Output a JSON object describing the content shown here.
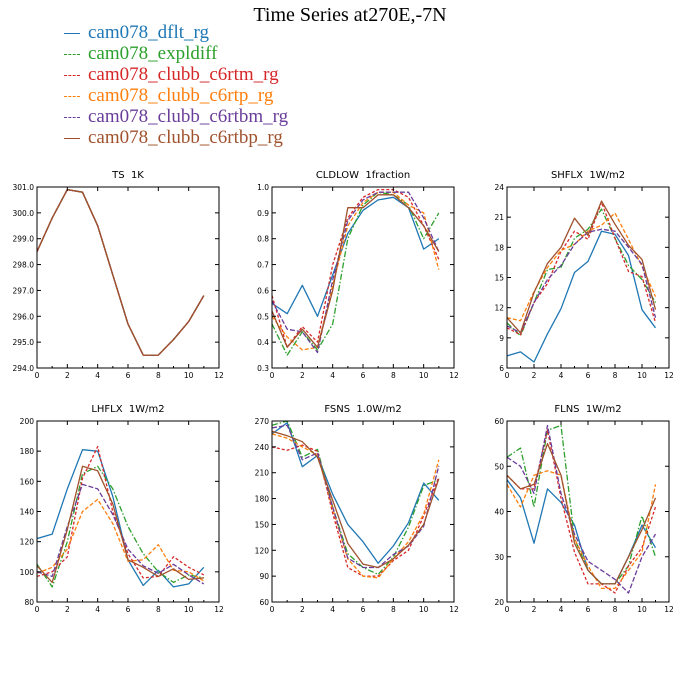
{
  "page_title": "Time Series at270E,-7N",
  "legend": [
    {
      "name": "cam078_dflt_rg",
      "color": "#1f77b4",
      "dash": false
    },
    {
      "name": "cam078_expldiff",
      "color": "#2ca02c",
      "dash": true
    },
    {
      "name": "cam078_clubb_c6rtm_rg",
      "color": "#d62728",
      "dash": true
    },
    {
      "name": "cam078_clubb_c6rtp_rg",
      "color": "#ff7f0e",
      "dash": true
    },
    {
      "name": "cam078_clubb_c6rtbm_rg",
      "color": "#6a3d9a",
      "dash": true
    },
    {
      "name": "cam078_clubb_c6rtbp_rg",
      "color": "#a0522d",
      "dash": false
    }
  ],
  "chart_data": [
    {
      "type": "line",
      "title": "TS 1K",
      "xlim": [
        0,
        12
      ],
      "ylim": [
        294.0,
        301.0
      ],
      "xticks": [
        "0",
        "2",
        "4",
        "6",
        "8",
        "10",
        "12"
      ],
      "yticks": [
        "294.0",
        "295.0",
        "296.0",
        "297.0",
        "298.0",
        "299.0",
        "300.0",
        "301.0"
      ],
      "x": [
        0,
        1,
        2,
        3,
        4,
        5,
        6,
        7,
        8,
        9,
        10,
        11
      ],
      "series": [
        {
          "name": "cam078_dflt_rg",
          "values": [
            298.5,
            299.8,
            300.9,
            300.8,
            299.5,
            297.6,
            295.7,
            294.5,
            294.5,
            295.1,
            295.8,
            296.8
          ]
        },
        {
          "name": "cam078_expldiff",
          "values": [
            298.5,
            299.8,
            300.9,
            300.8,
            299.5,
            297.6,
            295.7,
            294.5,
            294.5,
            295.1,
            295.8,
            296.8
          ]
        },
        {
          "name": "cam078_clubb_c6rtm_rg",
          "values": [
            298.5,
            299.8,
            300.9,
            300.8,
            299.5,
            297.6,
            295.7,
            294.5,
            294.5,
            295.1,
            295.8,
            296.8
          ]
        },
        {
          "name": "cam078_clubb_c6rtp_rg",
          "values": [
            298.5,
            299.8,
            300.9,
            300.8,
            299.5,
            297.6,
            295.7,
            294.5,
            294.5,
            295.1,
            295.8,
            296.8
          ]
        },
        {
          "name": "cam078_clubb_c6rtbm_rg",
          "values": [
            298.5,
            299.8,
            300.9,
            300.8,
            299.5,
            297.6,
            295.7,
            294.5,
            294.5,
            295.1,
            295.8,
            296.8
          ]
        },
        {
          "name": "cam078_clubb_c6rtbp_rg",
          "values": [
            298.5,
            299.8,
            300.9,
            300.8,
            299.5,
            297.6,
            295.7,
            294.5,
            294.5,
            295.1,
            295.8,
            296.8
          ]
        }
      ]
    },
    {
      "type": "line",
      "title": "CLDLOW 1fraction",
      "xlim": [
        0,
        12
      ],
      "ylim": [
        0.3,
        1.0
      ],
      "xticks": [
        "0",
        "2",
        "4",
        "6",
        "8",
        "10",
        "12"
      ],
      "yticks": [
        "0.3",
        "0.4",
        "0.5",
        "0.6",
        "0.7",
        "0.8",
        "0.9",
        "1.0"
      ],
      "x": [
        0,
        1,
        2,
        3,
        4,
        5,
        6,
        7,
        8,
        9,
        10,
        11
      ],
      "series": [
        {
          "name": "cam078_dflt_rg",
          "values": [
            0.55,
            0.51,
            0.62,
            0.5,
            0.66,
            0.82,
            0.91,
            0.95,
            0.96,
            0.92,
            0.76,
            0.8
          ]
        },
        {
          "name": "cam078_expldiff",
          "values": [
            0.47,
            0.35,
            0.44,
            0.37,
            0.47,
            0.8,
            0.93,
            0.98,
            0.97,
            0.93,
            0.8,
            0.9
          ]
        },
        {
          "name": "cam078_clubb_c6rtm_rg",
          "values": [
            0.58,
            0.38,
            0.46,
            0.4,
            0.7,
            0.88,
            0.96,
            0.99,
            0.99,
            0.96,
            0.85,
            0.72
          ]
        },
        {
          "name": "cam078_clubb_c6rtp_rg",
          "values": [
            0.5,
            0.42,
            0.37,
            0.38,
            0.62,
            0.85,
            0.94,
            0.98,
            0.98,
            0.93,
            0.9,
            0.68
          ]
        },
        {
          "name": "cam078_clubb_c6rtbm_rg",
          "values": [
            0.56,
            0.45,
            0.44,
            0.36,
            0.64,
            0.87,
            0.95,
            0.98,
            0.98,
            0.98,
            0.88,
            0.75
          ]
        },
        {
          "name": "cam078_clubb_c6rtbp_rg",
          "values": [
            0.52,
            0.38,
            0.45,
            0.38,
            0.6,
            0.92,
            0.92,
            0.97,
            0.97,
            0.92,
            0.85,
            0.75
          ]
        }
      ]
    },
    {
      "type": "line",
      "title": "SHFLX 1W/m2",
      "xlim": [
        0,
        12
      ],
      "ylim": [
        6,
        24
      ],
      "xticks": [
        "0",
        "2",
        "4",
        "6",
        "8",
        "10",
        "12"
      ],
      "yticks": [
        "6",
        "9",
        "12",
        "15",
        "18",
        "21",
        "24"
      ],
      "x": [
        0,
        1,
        2,
        3,
        4,
        5,
        6,
        7,
        8,
        9,
        10,
        11
      ],
      "series": [
        {
          "name": "cam078_dflt_rg",
          "values": [
            7.2,
            7.6,
            6.6,
            9.4,
            11.9,
            15.5,
            16.6,
            19.6,
            19.3,
            17.2,
            11.8,
            10.0
          ]
        },
        {
          "name": "cam078_expldiff",
          "values": [
            10.5,
            9.2,
            12.5,
            15.8,
            16.0,
            18.9,
            19.8,
            21.8,
            18.9,
            16.2,
            14.8,
            12.5
          ]
        },
        {
          "name": "cam078_clubb_c6rtm_rg",
          "values": [
            10.0,
            9.3,
            12.5,
            14.4,
            17.6,
            19.6,
            18.8,
            22.5,
            18.9,
            15.6,
            15.1,
            10.5
          ]
        },
        {
          "name": "cam078_clubb_c6rtp_rg",
          "values": [
            11.0,
            10.7,
            13.6,
            16.0,
            17.7,
            18.3,
            19.6,
            20.2,
            21.4,
            18.8,
            16.1,
            13.1
          ]
        },
        {
          "name": "cam078_clubb_c6rtbm_rg",
          "values": [
            10.2,
            9.5,
            12.5,
            14.8,
            16.2,
            18.3,
            19.5,
            19.8,
            19.6,
            18.0,
            16.3,
            11.0
          ]
        },
        {
          "name": "cam078_clubb_c6rtbp_rg",
          "values": [
            11.0,
            9.5,
            13.5,
            16.4,
            18.0,
            20.9,
            19.2,
            22.6,
            20.3,
            18.2,
            16.8,
            11.8
          ]
        }
      ]
    },
    {
      "type": "line",
      "title": "LHFLX 1W/m2",
      "xlim": [
        0,
        12
      ],
      "ylim": [
        80,
        200
      ],
      "xticks": [
        "0",
        "2",
        "4",
        "6",
        "8",
        "10",
        "12"
      ],
      "yticks": [
        "80",
        "100",
        "120",
        "140",
        "160",
        "180",
        "200"
      ],
      "x": [
        0,
        1,
        2,
        3,
        4,
        5,
        6,
        7,
        8,
        9,
        10,
        11
      ],
      "series": [
        {
          "name": "cam078_dflt_rg",
          "values": [
            122,
            125,
            155,
            181,
            180,
            150,
            108,
            91,
            101,
            90,
            92,
            103
          ]
        },
        {
          "name": "cam078_expldiff",
          "values": [
            105,
            90,
            120,
            165,
            170,
            155,
            130,
            112,
            100,
            93,
            98,
            96
          ]
        },
        {
          "name": "cam078_clubb_c6rtm_rg",
          "values": [
            97,
            100,
            110,
            162,
            183,
            140,
            112,
            96,
            97,
            110,
            103,
            98
          ]
        },
        {
          "name": "cam078_clubb_c6rtp_rg",
          "values": [
            99,
            103,
            115,
            140,
            148,
            132,
            107,
            108,
            118,
            101,
            100,
            94
          ]
        },
        {
          "name": "cam078_clubb_c6rtbm_rg",
          "values": [
            100,
            97,
            130,
            158,
            155,
            138,
            115,
            104,
            99,
            105,
            98,
            92
          ]
        },
        {
          "name": "cam078_clubb_c6rtbp_rg",
          "values": [
            104,
            93,
            128,
            170,
            167,
            145,
            108,
            103,
            97,
            102,
            95,
            96
          ]
        }
      ]
    },
    {
      "type": "line",
      "title": "FSNS 1.0W/m2",
      "xlim": [
        0,
        12
      ],
      "ylim": [
        60,
        270
      ],
      "xticks": [
        "0",
        "2",
        "4",
        "6",
        "8",
        "10",
        "12"
      ],
      "yticks": [
        "60",
        "90",
        "120",
        "150",
        "180",
        "210",
        "240",
        "270"
      ],
      "x": [
        0,
        1,
        2,
        3,
        4,
        5,
        6,
        7,
        8,
        9,
        10,
        11
      ],
      "series": [
        {
          "name": "cam078_dflt_rg",
          "values": [
            255,
            268,
            217,
            230,
            185,
            150,
            130,
            105,
            125,
            152,
            198,
            178
          ]
        },
        {
          "name": "cam078_expldiff",
          "values": [
            265,
            270,
            228,
            237,
            170,
            116,
            100,
            92,
            112,
            147,
            195,
            202
          ]
        },
        {
          "name": "cam078_clubb_c6rtm_rg",
          "values": [
            240,
            236,
            242,
            235,
            163,
            100,
            90,
            90,
            108,
            120,
            160,
            205
          ]
        },
        {
          "name": "cam078_clubb_c6rtp_rg",
          "values": [
            255,
            250,
            240,
            231,
            168,
            110,
            90,
            88,
            110,
            130,
            162,
            225
          ]
        },
        {
          "name": "cam078_clubb_c6rtbm_rg",
          "values": [
            262,
            265,
            225,
            233,
            170,
            111,
            100,
            100,
            115,
            125,
            148,
            218
          ]
        },
        {
          "name": "cam078_clubb_c6rtbp_rg",
          "values": [
            258,
            253,
            246,
            228,
            178,
            128,
            104,
            100,
            110,
            126,
            150,
            203
          ]
        }
      ]
    },
    {
      "type": "line",
      "title": "FLNS 1W/m2",
      "xlim": [
        0,
        12
      ],
      "ylim": [
        20,
        60
      ],
      "xticks": [
        "0",
        "2",
        "4",
        "6",
        "8",
        "10",
        "12"
      ],
      "yticks": [
        "20",
        "30",
        "40",
        "50",
        "60"
      ],
      "x": [
        0,
        1,
        2,
        3,
        4,
        5,
        6,
        7,
        8,
        9,
        10,
        11
      ],
      "series": [
        {
          "name": "cam078_dflt_rg",
          "values": [
            47,
            43,
            33,
            45,
            42,
            37,
            27,
            24,
            24,
            30,
            37,
            32
          ]
        },
        {
          "name": "cam078_expldiff",
          "values": [
            52,
            54,
            41,
            58,
            59,
            34,
            27,
            24,
            24,
            28,
            39,
            30
          ]
        },
        {
          "name": "cam078_clubb_c6rtm_rg",
          "values": [
            48,
            45,
            45,
            58,
            43,
            31,
            24,
            24,
            22,
            28,
            32,
            41
          ]
        },
        {
          "name": "cam078_clubb_c6rtp_rg",
          "values": [
            46,
            41,
            48,
            49,
            48,
            34,
            28,
            23,
            23,
            27,
            31,
            46
          ]
        },
        {
          "name": "cam078_clubb_c6rtbm_rg",
          "values": [
            52,
            50,
            44,
            59,
            44,
            35,
            29,
            27,
            25,
            22,
            30,
            35
          ]
        },
        {
          "name": "cam078_clubb_c6rtbp_rg",
          "values": [
            48,
            45,
            46,
            55,
            48,
            33,
            27,
            24,
            24,
            30,
            36,
            43
          ]
        }
      ]
    }
  ]
}
